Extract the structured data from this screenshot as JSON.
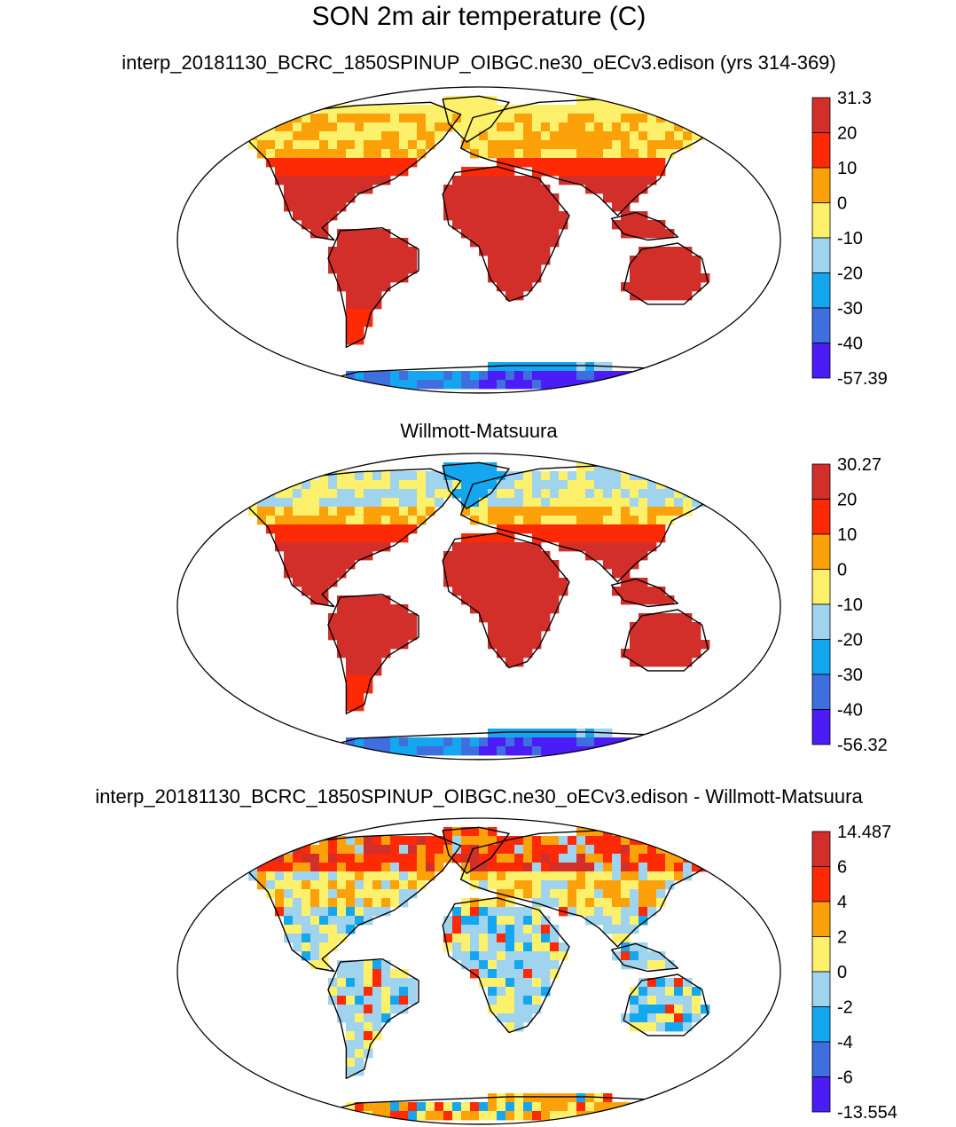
{
  "figure": {
    "title": "SON 2m air temperature (C)"
  },
  "colors": {
    "ocean": "#ffffff",
    "outline": "#000000",
    "bins": [
      "#4b1cf5",
      "#3f6fdf",
      "#14a7f0",
      "#9fd3ee",
      "#fdf06a",
      "#fda10a",
      "#fd2a05",
      "#d22f2a"
    ]
  },
  "panels": [
    {
      "title": "interp_20181130_BCRC_1850SPINUP_OIBGC.ne30_oECv3.edison (yrs 314-369)",
      "map_kind": "model",
      "colorbar": {
        "labels": [
          "31.3",
          "20",
          "10",
          "0",
          "-10",
          "-20",
          "-30",
          "-40",
          "-57.39"
        ]
      }
    },
    {
      "title": "Willmott-Matsuura",
      "map_kind": "obs",
      "colorbar": {
        "labels": [
          "30.27",
          "20",
          "10",
          "0",
          "-10",
          "-20",
          "-30",
          "-40",
          "-56.32"
        ]
      }
    },
    {
      "title": "interp_20181130_BCRC_1850SPINUP_OIBGC.ne30_oECv3.edison - Willmott-Matsuura",
      "map_kind": "diff",
      "colorbar": {
        "labels": [
          "14.487",
          "6",
          "4",
          "2",
          "0",
          "-2",
          "-4",
          "-6",
          "-13.554"
        ]
      }
    }
  ]
}
